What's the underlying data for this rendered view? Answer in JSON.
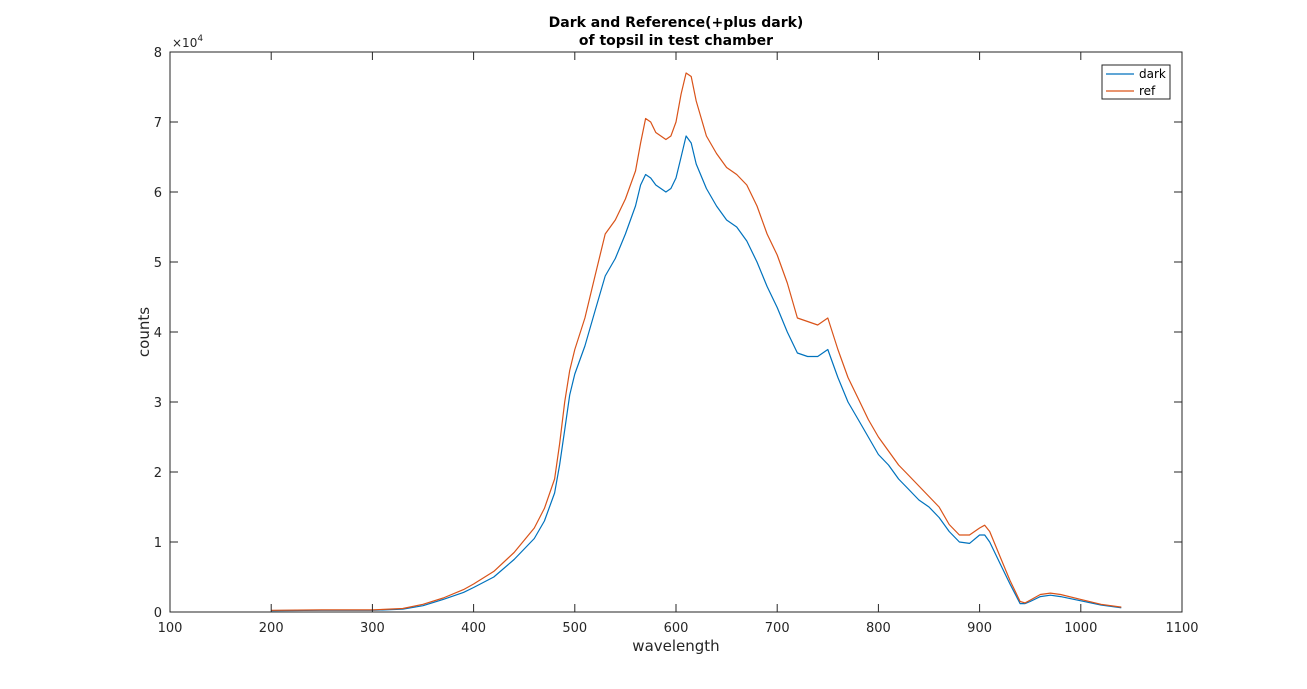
{
  "chart_data": {
    "type": "line",
    "title": [
      "Dark and Reference(+plus dark)",
      "of topsil in test chamber"
    ],
    "xlabel": "wavelength",
    "ylabel": "counts",
    "xlim": [
      100,
      1100
    ],
    "ylim": [
      0,
      80000
    ],
    "xticks": [
      100,
      200,
      300,
      400,
      500,
      600,
      700,
      800,
      900,
      1000,
      1100
    ],
    "yticks": [
      0,
      10000,
      20000,
      30000,
      40000,
      50000,
      60000,
      70000,
      80000
    ],
    "ytick_labels": [
      "0",
      "1",
      "2",
      "3",
      "4",
      "5",
      "6",
      "7",
      "8"
    ],
    "y_exponent": {
      "base": "×10",
      "power": "4"
    },
    "grid": false,
    "legend_position": "top-right",
    "series": [
      {
        "name": "dark",
        "color": "#0072BD",
        "points": [
          [
            200,
            200
          ],
          [
            250,
            250
          ],
          [
            300,
            250
          ],
          [
            330,
            400
          ],
          [
            350,
            900
          ],
          [
            370,
            1800
          ],
          [
            390,
            2800
          ],
          [
            400,
            3500
          ],
          [
            420,
            5000
          ],
          [
            440,
            7500
          ],
          [
            460,
            10500
          ],
          [
            470,
            13000
          ],
          [
            480,
            17000
          ],
          [
            485,
            21000
          ],
          [
            490,
            26000
          ],
          [
            495,
            31000
          ],
          [
            500,
            34000
          ],
          [
            510,
            38000
          ],
          [
            520,
            43000
          ],
          [
            530,
            48000
          ],
          [
            540,
            50500
          ],
          [
            550,
            54000
          ],
          [
            560,
            58000
          ],
          [
            565,
            61000
          ],
          [
            570,
            62500
          ],
          [
            575,
            62000
          ],
          [
            580,
            61000
          ],
          [
            590,
            60000
          ],
          [
            595,
            60500
          ],
          [
            600,
            62000
          ],
          [
            605,
            65000
          ],
          [
            610,
            68000
          ],
          [
            615,
            67000
          ],
          [
            620,
            64000
          ],
          [
            630,
            60500
          ],
          [
            640,
            58000
          ],
          [
            650,
            56000
          ],
          [
            660,
            55000
          ],
          [
            670,
            53000
          ],
          [
            680,
            50000
          ],
          [
            690,
            46500
          ],
          [
            700,
            43500
          ],
          [
            710,
            40000
          ],
          [
            720,
            37000
          ],
          [
            730,
            36500
          ],
          [
            740,
            36500
          ],
          [
            750,
            37500
          ],
          [
            760,
            33500
          ],
          [
            770,
            30000
          ],
          [
            780,
            27500
          ],
          [
            790,
            25000
          ],
          [
            800,
            22500
          ],
          [
            810,
            21000
          ],
          [
            820,
            19000
          ],
          [
            830,
            17500
          ],
          [
            840,
            16000
          ],
          [
            850,
            15000
          ],
          [
            860,
            13500
          ],
          [
            870,
            11500
          ],
          [
            880,
            10000
          ],
          [
            890,
            9800
          ],
          [
            900,
            11000
          ],
          [
            905,
            11000
          ],
          [
            910,
            10000
          ],
          [
            920,
            7000
          ],
          [
            930,
            4000
          ],
          [
            940,
            1200
          ],
          [
            945,
            1200
          ],
          [
            950,
            1500
          ],
          [
            960,
            2200
          ],
          [
            970,
            2400
          ],
          [
            980,
            2200
          ],
          [
            1000,
            1600
          ],
          [
            1020,
            1000
          ],
          [
            1040,
            600
          ]
        ]
      },
      {
        "name": "ref",
        "color": "#D95319",
        "points": [
          [
            200,
            250
          ],
          [
            250,
            300
          ],
          [
            300,
            300
          ],
          [
            330,
            500
          ],
          [
            350,
            1100
          ],
          [
            370,
            2000
          ],
          [
            390,
            3200
          ],
          [
            400,
            4000
          ],
          [
            420,
            5800
          ],
          [
            440,
            8500
          ],
          [
            460,
            12000
          ],
          [
            470,
            14800
          ],
          [
            480,
            19000
          ],
          [
            485,
            24000
          ],
          [
            490,
            30000
          ],
          [
            495,
            34500
          ],
          [
            500,
            37500
          ],
          [
            510,
            42000
          ],
          [
            520,
            48000
          ],
          [
            530,
            54000
          ],
          [
            540,
            56000
          ],
          [
            550,
            59000
          ],
          [
            560,
            63000
          ],
          [
            565,
            67000
          ],
          [
            570,
            70500
          ],
          [
            575,
            70000
          ],
          [
            580,
            68500
          ],
          [
            590,
            67500
          ],
          [
            595,
            68000
          ],
          [
            600,
            70000
          ],
          [
            605,
            74000
          ],
          [
            610,
            77000
          ],
          [
            615,
            76500
          ],
          [
            620,
            73000
          ],
          [
            630,
            68000
          ],
          [
            640,
            65500
          ],
          [
            650,
            63500
          ],
          [
            660,
            62500
          ],
          [
            670,
            61000
          ],
          [
            680,
            58000
          ],
          [
            690,
            54000
          ],
          [
            700,
            51000
          ],
          [
            710,
            47000
          ],
          [
            720,
            42000
          ],
          [
            730,
            41500
          ],
          [
            740,
            41000
          ],
          [
            750,
            42000
          ],
          [
            760,
            37500
          ],
          [
            770,
            33500
          ],
          [
            780,
            30500
          ],
          [
            790,
            27500
          ],
          [
            800,
            25000
          ],
          [
            810,
            23000
          ],
          [
            820,
            21000
          ],
          [
            830,
            19500
          ],
          [
            840,
            18000
          ],
          [
            850,
            16500
          ],
          [
            860,
            15000
          ],
          [
            870,
            12500
          ],
          [
            880,
            11000
          ],
          [
            890,
            11000
          ],
          [
            900,
            12000
          ],
          [
            905,
            12400
          ],
          [
            910,
            11500
          ],
          [
            920,
            8000
          ],
          [
            930,
            4500
          ],
          [
            940,
            1500
          ],
          [
            945,
            1300
          ],
          [
            950,
            1700
          ],
          [
            960,
            2500
          ],
          [
            970,
            2700
          ],
          [
            980,
            2500
          ],
          [
            1000,
            1800
          ],
          [
            1020,
            1100
          ],
          [
            1040,
            700
          ]
        ]
      }
    ]
  }
}
